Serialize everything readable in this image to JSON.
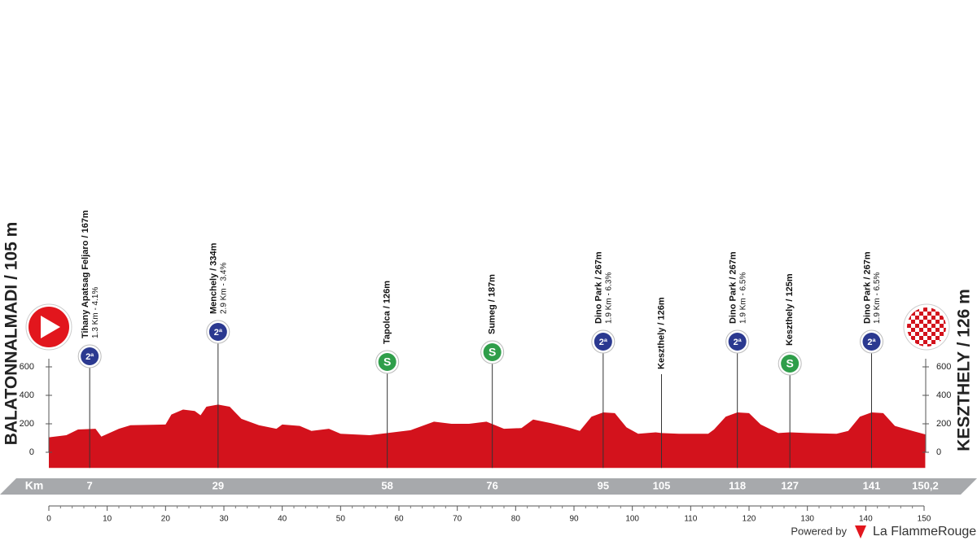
{
  "chart_data": {
    "type": "area",
    "color": "#d3121c",
    "start": "BALATONNALMADI / 105 m",
    "finish": "KESZTHELY / 126 m",
    "x": [
      0,
      3,
      5,
      8,
      9,
      12,
      14,
      20,
      21,
      23,
      25,
      26,
      27,
      29,
      31,
      33,
      36,
      39,
      40,
      43,
      45,
      48,
      50,
      55,
      58,
      62,
      66,
      69,
      72,
      75,
      78,
      81,
      83,
      86,
      89,
      91,
      93,
      95,
      97,
      99,
      101,
      104,
      105,
      108,
      113,
      114,
      116,
      118,
      120,
      122,
      125,
      127,
      130,
      135,
      137,
      139,
      141,
      143,
      145,
      148,
      150.2
    ],
    "values": [
      105,
      120,
      160,
      165,
      110,
      165,
      190,
      195,
      265,
      300,
      290,
      260,
      320,
      335,
      320,
      235,
      190,
      165,
      195,
      185,
      150,
      165,
      130,
      120,
      135,
      155,
      215,
      200,
      200,
      215,
      165,
      170,
      230,
      205,
      175,
      150,
      250,
      280,
      275,
      175,
      130,
      140,
      135,
      130,
      130,
      160,
      250,
      280,
      275,
      195,
      135,
      140,
      135,
      130,
      150,
      250,
      280,
      275,
      185,
      150,
      126
    ],
    "xlim": [
      0,
      150
    ],
    "xticks": [
      0,
      10,
      20,
      30,
      40,
      50,
      60,
      70,
      80,
      90,
      100,
      110,
      120,
      130,
      140,
      150
    ],
    "ylim": [
      -110,
      3000
    ],
    "yticks": [
      0,
      200,
      400,
      600
    ],
    "km_label": "Km",
    "kmticks": [
      7,
      29,
      58,
      76,
      95,
      105,
      118,
      127,
      141,
      {
        "value": 150.2,
        "label": "150,2"
      }
    ],
    "points": [
      {
        "km": 7,
        "icon": "2ª",
        "label": "Tihany Apatsag Feljaro / 167m",
        "sub": "1.3 Km - 4.1%"
      },
      {
        "km": 29,
        "icon": "2ª",
        "label": "Menchely / 334m",
        "sub": "2.9 Km - 3.4%"
      },
      {
        "km": 58,
        "icon": "S",
        "label": "Tapolca / 126m"
      },
      {
        "km": 76,
        "icon": "S",
        "label": "Sumeg / 187m"
      },
      {
        "km": 95,
        "icon": "2ª",
        "label": "Dino Park / 267m",
        "sub": "1.9 Km - 6.3%"
      },
      {
        "km": 105,
        "label": "Keszthely / 126m"
      },
      {
        "km": 118,
        "icon": "2ª",
        "label": "Dino Park / 267m",
        "sub": "1.9 Km - 6.5%"
      },
      {
        "km": 127,
        "icon": "S",
        "label": "Keszthely / 125m"
      },
      {
        "km": 141,
        "icon": "2ª",
        "label": "Dino Park / 267m",
        "sub": "1.9 Km - 6.5%"
      }
    ]
  },
  "footer": {
    "powered": "Powered by",
    "brand": "La FlammeRouge"
  }
}
